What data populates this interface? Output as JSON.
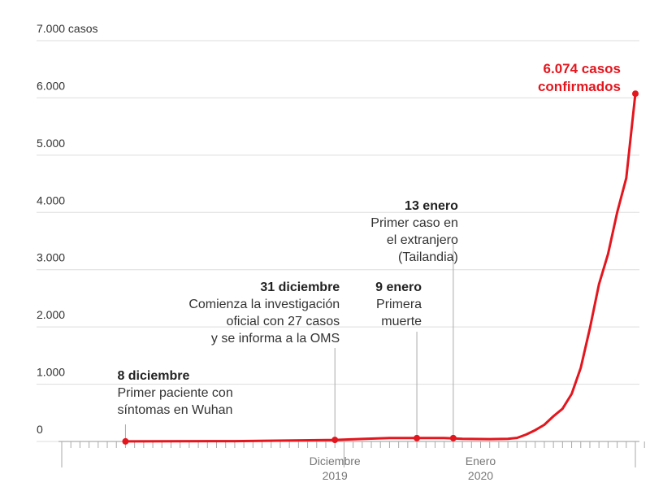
{
  "colors": {
    "series": "#e3161e",
    "grid": "#dddddd",
    "text": "#333333",
    "muted": "#777777"
  },
  "chart_data": {
    "type": "line",
    "x_day_index_start": "2019-12-01",
    "ylim": [
      0,
      7000
    ],
    "y_ticks": [
      {
        "value": 0,
        "label": "0"
      },
      {
        "value": 1000,
        "label": "1.000"
      },
      {
        "value": 2000,
        "label": "2.000"
      },
      {
        "value": 3000,
        "label": "3.000"
      },
      {
        "value": 4000,
        "label": "4.000"
      },
      {
        "value": 5000,
        "label": "5.000"
      },
      {
        "value": 6000,
        "label": "6.000"
      },
      {
        "value": 7000,
        "label": "7.000 casos"
      }
    ],
    "x_labels": [
      {
        "day": 31,
        "month": "Diciembre",
        "year": "2019"
      },
      {
        "day": 47,
        "month": "Enero",
        "year": "2020"
      }
    ],
    "series": [
      {
        "points": [
          {
            "x": 8,
            "y": 1
          },
          {
            "x": 20,
            "y": 5
          },
          {
            "x": 31,
            "y": 27
          },
          {
            "x": 34,
            "y": 44
          },
          {
            "x": 37,
            "y": 60
          },
          {
            "x": 40,
            "y": 59
          },
          {
            "x": 43,
            "y": 59
          },
          {
            "x": 45,
            "y": 45
          },
          {
            "x": 48,
            "y": 41
          },
          {
            "x": 50,
            "y": 45
          },
          {
            "x": 51,
            "y": 62
          },
          {
            "x": 52,
            "y": 120
          },
          {
            "x": 53,
            "y": 198
          },
          {
            "x": 54,
            "y": 291
          },
          {
            "x": 55,
            "y": 440
          },
          {
            "x": 56,
            "y": 571
          },
          {
            "x": 57,
            "y": 830
          },
          {
            "x": 58,
            "y": 1287
          },
          {
            "x": 59,
            "y": 1975
          },
          {
            "x": 60,
            "y": 2744
          },
          {
            "x": 61,
            "y": 3275
          },
          {
            "x": 62,
            "y": 4000
          },
          {
            "x": 63,
            "y": 4600
          },
          {
            "x": 64,
            "y": 6074
          }
        ]
      }
    ],
    "markers": [
      8,
      31,
      40,
      44,
      64
    ],
    "annotations": [
      {
        "x": 8,
        "y": 1,
        "title": "8 diciembre",
        "lines": [
          "Primer paciente con",
          "síntomas en Wuhan"
        ],
        "align": "start"
      },
      {
        "x": 31,
        "y": 27,
        "title": "31 diciembre",
        "lines": [
          "Comienza la investigación",
          "oficial con 27 casos",
          "y se informa a la OMS"
        ],
        "align": "end"
      },
      {
        "x": 40,
        "y": 59,
        "title": "9 enero",
        "lines": [
          "Primera",
          "muerte"
        ],
        "align": "end"
      },
      {
        "x": 44,
        "y": 45,
        "title": "13 enero",
        "lines": [
          "Primer caso en",
          "el extranjero",
          "(Tailandia)"
        ],
        "align": "end"
      }
    ],
    "final_label": [
      "6.074 casos",
      "confirmados"
    ]
  }
}
